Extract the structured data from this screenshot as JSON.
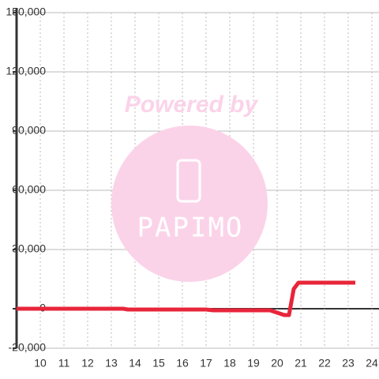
{
  "chart_data": {
    "type": "line",
    "watermark_text": "Powered by",
    "watermark_logo": "PAPIMO",
    "x": [
      9,
      13.5,
      13.7,
      17,
      17.3,
      19.7,
      20.3,
      20.5,
      20.7,
      20.9,
      23.3
    ],
    "series": [
      {
        "color": "#e8253a",
        "values": [
          0,
          0,
          -400,
          -400,
          -800,
          -800,
          -3200,
          -3200,
          10000,
          13200,
          13200
        ]
      }
    ],
    "xlim": [
      9,
      24.3
    ],
    "xticks": [
      10,
      11,
      12,
      13,
      14,
      15,
      16,
      17,
      18,
      19,
      20,
      21,
      22,
      23,
      24
    ],
    "ylim": [
      -20000,
      150000
    ],
    "yticks": [
      {
        "value": -20000,
        "label": "-20,000"
      },
      0,
      {
        "value": 30000,
        "label": "30,000"
      },
      {
        "value": 60000,
        "label": "60,000"
      },
      {
        "value": 90000,
        "label": "90,000"
      },
      {
        "value": 120000,
        "label": "120,000"
      },
      {
        "value": 150000,
        "label": "150,000"
      }
    ],
    "grid": true
  }
}
